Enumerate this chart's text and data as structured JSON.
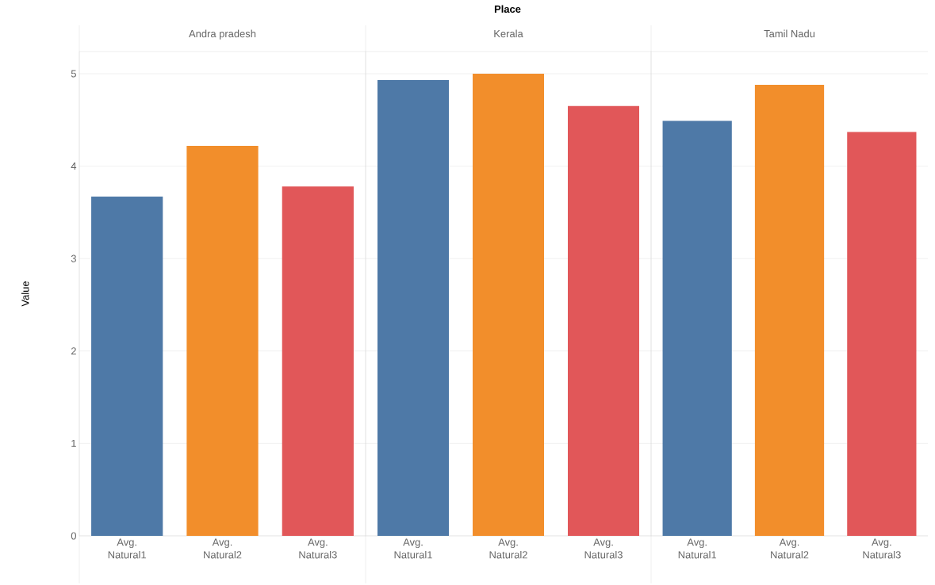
{
  "chart_data": [
    {
      "type": "bar",
      "title": "Andra pradesh",
      "ylabel": "Value",
      "annotations": [
        "Place"
      ],
      "categories": [
        "Avg. Natural1",
        "Avg. Natural2",
        "Avg. Natural3"
      ],
      "values": [
        3.67,
        4.22,
        3.78
      ],
      "colors": [
        "#4e79a7",
        "#f28e2b",
        "#e15759"
      ],
      "ylim": [
        0,
        5.24
      ],
      "yticks": [
        0,
        1,
        2,
        3,
        4,
        5
      ],
      "grid": "y"
    },
    {
      "type": "bar",
      "title": "Kerala",
      "categories": [
        "Avg. Natural1",
        "Avg. Natural2",
        "Avg. Natural3"
      ],
      "values": [
        4.93,
        5.0,
        4.65
      ],
      "colors": [
        "#4e79a7",
        "#f28e2b",
        "#e15759"
      ],
      "ylim": [
        0,
        5.24
      ],
      "yticks": [
        0,
        1,
        2,
        3,
        4,
        5
      ],
      "grid": "y",
      "tick_labels": "x"
    },
    {
      "type": "bar",
      "title": "Tamil Nadu",
      "categories": [
        "Avg. Natural1",
        "Avg. Natural2",
        "Avg. Natural3"
      ],
      "values": [
        4.49,
        4.88,
        4.37
      ],
      "colors": [
        "#4e79a7",
        "#f28e2b",
        "#e15759"
      ],
      "ylim": [
        0,
        5.24
      ],
      "yticks": [
        0,
        1,
        2,
        3,
        4,
        5
      ],
      "grid": "y",
      "tick_labels": "x"
    }
  ]
}
